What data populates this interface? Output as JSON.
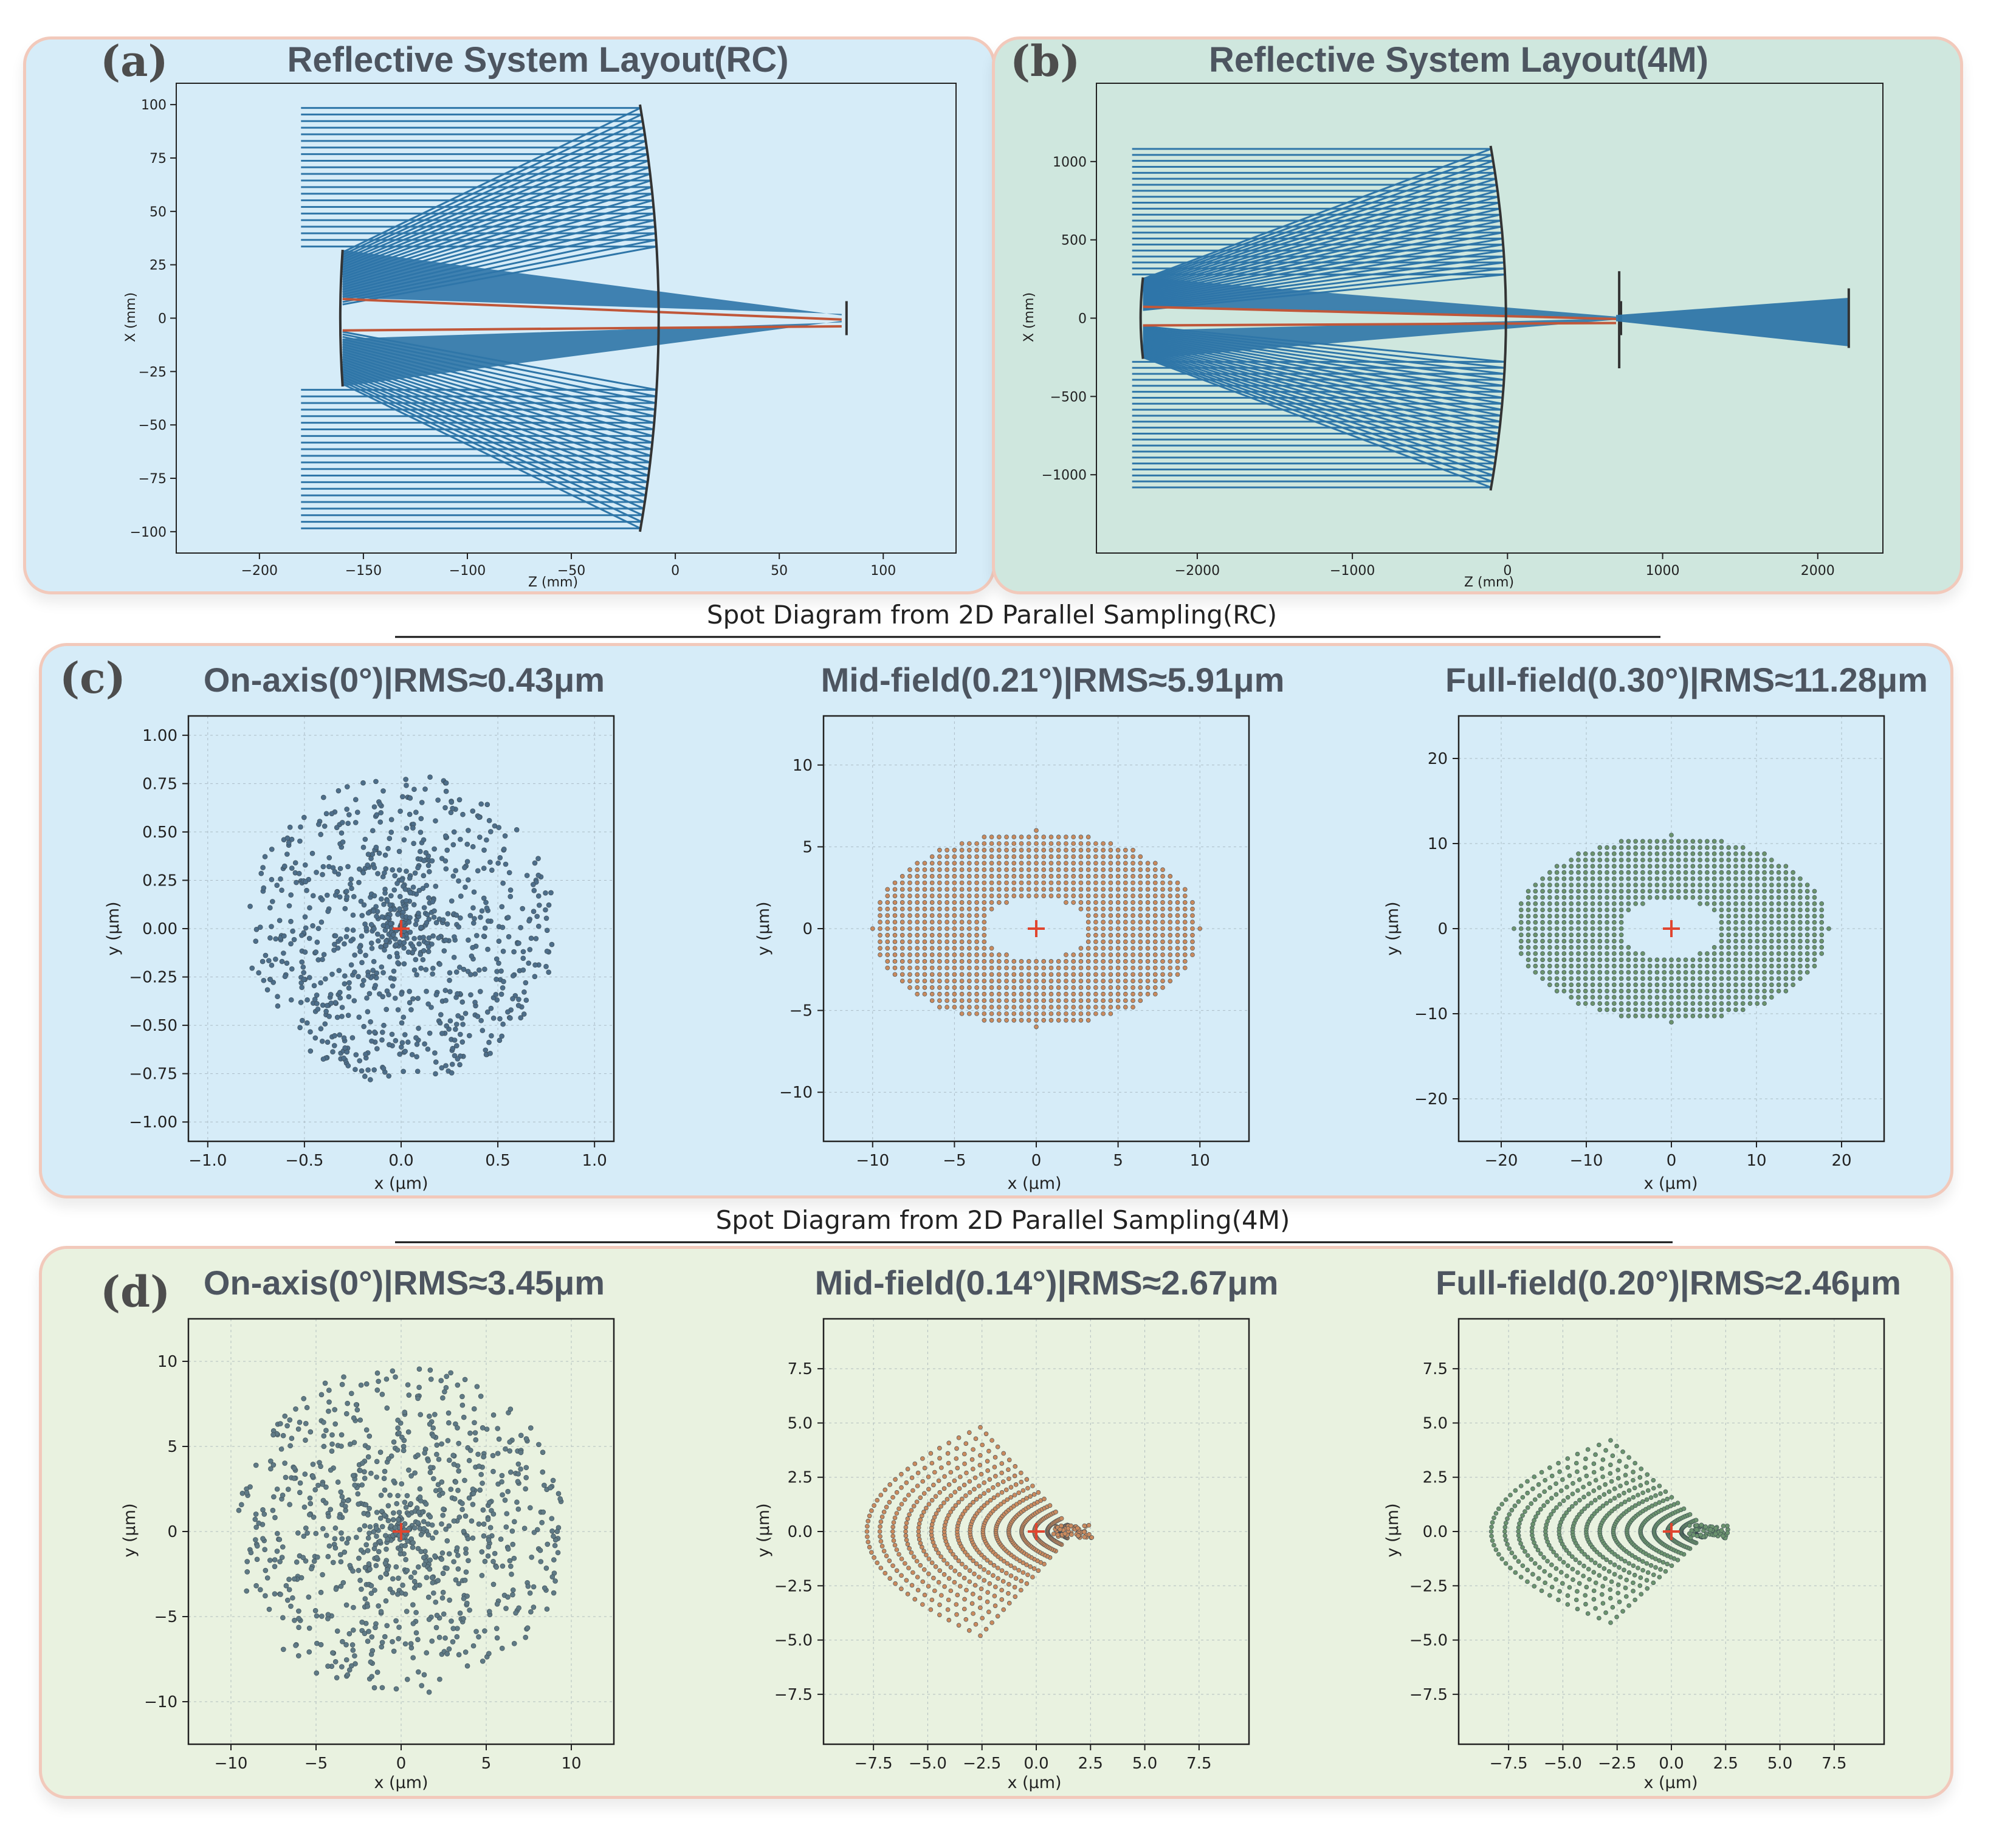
{
  "layouts": [
    {
      "label": "(a)",
      "title": "Reflective System Layout(RC)",
      "xlabel": "Z (mm)",
      "ylabel": "X (mm)",
      "xlim": [
        -240,
        135
      ],
      "ylim": [
        -110,
        110
      ],
      "xticks": [
        -200,
        -150,
        -100,
        -50,
        0,
        50,
        100
      ],
      "yticks": [
        -100,
        -75,
        -50,
        -25,
        0,
        25,
        50,
        75,
        100
      ],
      "primary_z_vertex": -8,
      "primary_radius": 100,
      "secondary_z_vertex": -160,
      "secondary_radius": 32,
      "focus_z": 80,
      "ray_start_z": -180
    },
    {
      "label": "(b)",
      "title": "Reflective System Layout(4M)",
      "xlabel": "Z (mm)",
      "ylabel": "X (mm)",
      "xlim": [
        -2650,
        2420
      ],
      "ylim": [
        -1500,
        1500
      ],
      "xticks": [
        -2000,
        -1000,
        0,
        1000,
        2000
      ],
      "yticks": [
        -1000,
        -500,
        0,
        500,
        1000
      ],
      "primary_z_vertex": -10,
      "primary_radius": 1100,
      "secondary_z_vertex": -2350,
      "secondary_radius": 260,
      "focus_z": 700,
      "ray_start_z": -2420,
      "third_mirror_z": 720,
      "fourth_mirror_z": 2200
    }
  ],
  "sections": [
    {
      "label": "(c)",
      "title": "Spot Diagram from 2D Parallel Sampling(RC)"
    },
    {
      "label": "(d)",
      "title": "Spot Diagram from 2D Parallel Sampling(4M)"
    }
  ],
  "chart_data": [
    {
      "type": "scatter",
      "title": "On-axis(0°)|RMS≈0.43μm",
      "xlabel": "x (μm)",
      "ylabel": "y (μm)",
      "xlim": [
        -1.1,
        1.1
      ],
      "ylim": [
        -1.1,
        1.1
      ],
      "xticks": [
        "-1.0",
        "-0.5",
        "0.0",
        "0.5",
        "1.0"
      ],
      "yticks": [
        "-1.00",
        "-0.75",
        "-0.50",
        "-0.25",
        "0.00",
        "0.25",
        "0.50",
        "0.75",
        "1.00"
      ],
      "color": "#4d6e8a",
      "pattern": "onaxis",
      "extent": 0.8
    },
    {
      "type": "scatter",
      "title": "Mid-field(0.21°)|RMS≈5.91μm",
      "xlabel": "x (μm)",
      "ylabel": "y (μm)",
      "xlim": [
        -13,
        13
      ],
      "ylim": [
        -13,
        13
      ],
      "xticks": [
        "-10",
        "-5",
        "0",
        "5",
        "10"
      ],
      "yticks": [
        "-10",
        "-5",
        "0",
        "5",
        "10"
      ],
      "color": "#c98a5e",
      "pattern": "ring",
      "rx": 10,
      "ry": 6
    },
    {
      "type": "scatter",
      "title": "Full-field(0.30°)|RMS≈11.28μm",
      "xlabel": "x (μm)",
      "ylabel": "y (μm)",
      "xlim": [
        -25,
        25
      ],
      "ylim": [
        -25,
        25
      ],
      "xticks": [
        "-20",
        "-10",
        "0",
        "10",
        "20"
      ],
      "yticks": [
        "-20",
        "-10",
        "0",
        "10",
        "20"
      ],
      "color": "#6b936e",
      "pattern": "ring",
      "rx": 18.5,
      "ry": 11
    },
    {
      "type": "scatter",
      "title": "On-axis(0°)|RMS≈3.45μm",
      "xlabel": "x (μm)",
      "ylabel": "y (μm)",
      "xlim": [
        -12.5,
        12.5
      ],
      "ylim": [
        -12.5,
        12.5
      ],
      "xticks": [
        "-10",
        "-5",
        "0",
        "5",
        "10"
      ],
      "yticks": [
        "-10",
        "-5",
        "0",
        "5",
        "10"
      ],
      "color": "#5f7a85",
      "pattern": "onaxis",
      "extent": 9.8
    },
    {
      "type": "scatter",
      "title": "Mid-field(0.14°)|RMS≈2.67μm",
      "xlabel": "x (μm)",
      "ylabel": "y (μm)",
      "xlim": [
        -9.8,
        9.8
      ],
      "ylim": [
        -9.8,
        9.8
      ],
      "xticks": [
        "-7.5",
        "-5.0",
        "-2.5",
        "0.0",
        "2.5",
        "5.0",
        "7.5"
      ],
      "yticks": [
        "-7.5",
        "-5.0",
        "-2.5",
        "0.0",
        "2.5",
        "5.0",
        "7.5"
      ],
      "color": "#c98a5e",
      "pattern": "coma",
      "w": 9.5,
      "h": 4.8
    },
    {
      "type": "scatter",
      "title": "Full-field(0.20°)|RMS≈2.46μm",
      "xlabel": "x (μm)",
      "ylabel": "y (μm)",
      "xlim": [
        -9.8,
        9.8
      ],
      "ylim": [
        -9.8,
        9.8
      ],
      "xticks": [
        "-7.5",
        "-5.0",
        "-2.5",
        "0.0",
        "2.5",
        "5.0",
        "7.5"
      ],
      "yticks": [
        "-7.5",
        "-5.0",
        "-2.5",
        "0.0",
        "2.5",
        "5.0",
        "7.5"
      ],
      "color": "#6b936e",
      "pattern": "coma",
      "w": 10,
      "h": 4.2
    }
  ]
}
